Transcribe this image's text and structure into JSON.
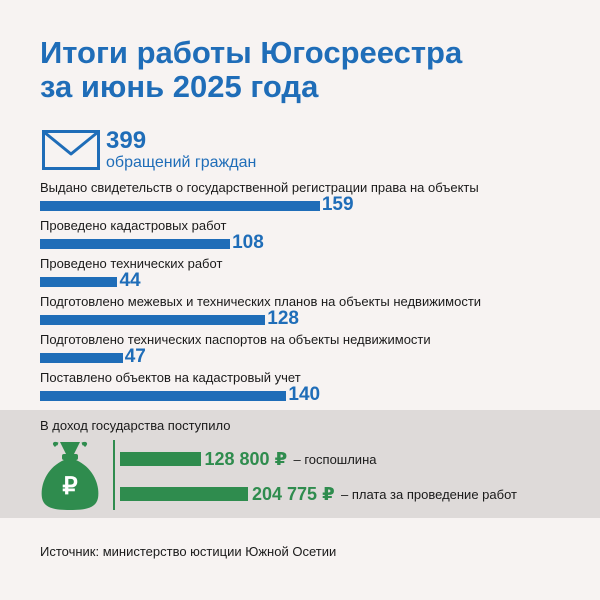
{
  "title": {
    "line1": "Итоги работы Югосреестра",
    "line2": "за июнь 2025 года"
  },
  "appeals": {
    "icon": "envelope-icon",
    "value": "399",
    "label": "обращений граждан"
  },
  "chart_data": {
    "type": "bar",
    "orientation": "horizontal",
    "categories": [
      "Выдано свидетельств о государственной регистрации права на объекты",
      "Проведено кадастровых работ",
      "Проведено технических работ",
      "Подготовлено межевых и технических планов на объекты недвижимости",
      "Подготовлено технических паспортов на объекты недвижимости",
      "Поставлено объектов на кадастровый учет"
    ],
    "values": [
      159,
      108,
      44,
      128,
      47,
      140
    ],
    "color": "#1f6db8"
  },
  "income": {
    "title": "В доход государства поступило",
    "icon": "money-bag-icon",
    "currency_symbol": "₽",
    "color": "#2f8c4e",
    "items": [
      {
        "amount": "128 800 ₽",
        "value": 128800,
        "desc": "– госпошлина"
      },
      {
        "amount": "204 775 ₽",
        "value": 204775,
        "desc": "– плата за проведение работ"
      }
    ]
  },
  "source": "Источник: министерство юстиции Южной Осетии"
}
